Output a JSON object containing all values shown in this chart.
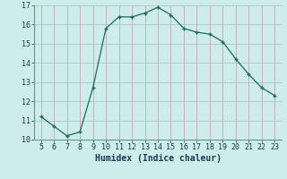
{
  "x": [
    5,
    6,
    7,
    8,
    9,
    10,
    11,
    12,
    13,
    14,
    15,
    16,
    17,
    18,
    19,
    20,
    21,
    22,
    23
  ],
  "y": [
    11.2,
    10.7,
    10.2,
    10.4,
    12.7,
    15.8,
    16.4,
    16.4,
    16.6,
    16.9,
    16.5,
    15.8,
    15.6,
    15.5,
    15.1,
    14.2,
    13.4,
    12.7,
    12.3
  ],
  "line_color": "#1a6b5a",
  "marker_color": "#1a6b5a",
  "bg_color": "#ceecea",
  "grid_color_v": "#c4a8a8",
  "grid_color_h": "#a8c8c6",
  "xlabel": "Humidex (Indice chaleur)",
  "xlim": [
    4.5,
    23.5
  ],
  "ylim": [
    10,
    17
  ],
  "yticks": [
    10,
    11,
    12,
    13,
    14,
    15,
    16,
    17
  ],
  "xticks": [
    5,
    6,
    7,
    8,
    9,
    10,
    11,
    12,
    13,
    14,
    15,
    16,
    17,
    18,
    19,
    20,
    21,
    22,
    23
  ],
  "font_color": "#1a3a50",
  "label_fontsize": 7.0,
  "tick_fontsize": 6.0
}
